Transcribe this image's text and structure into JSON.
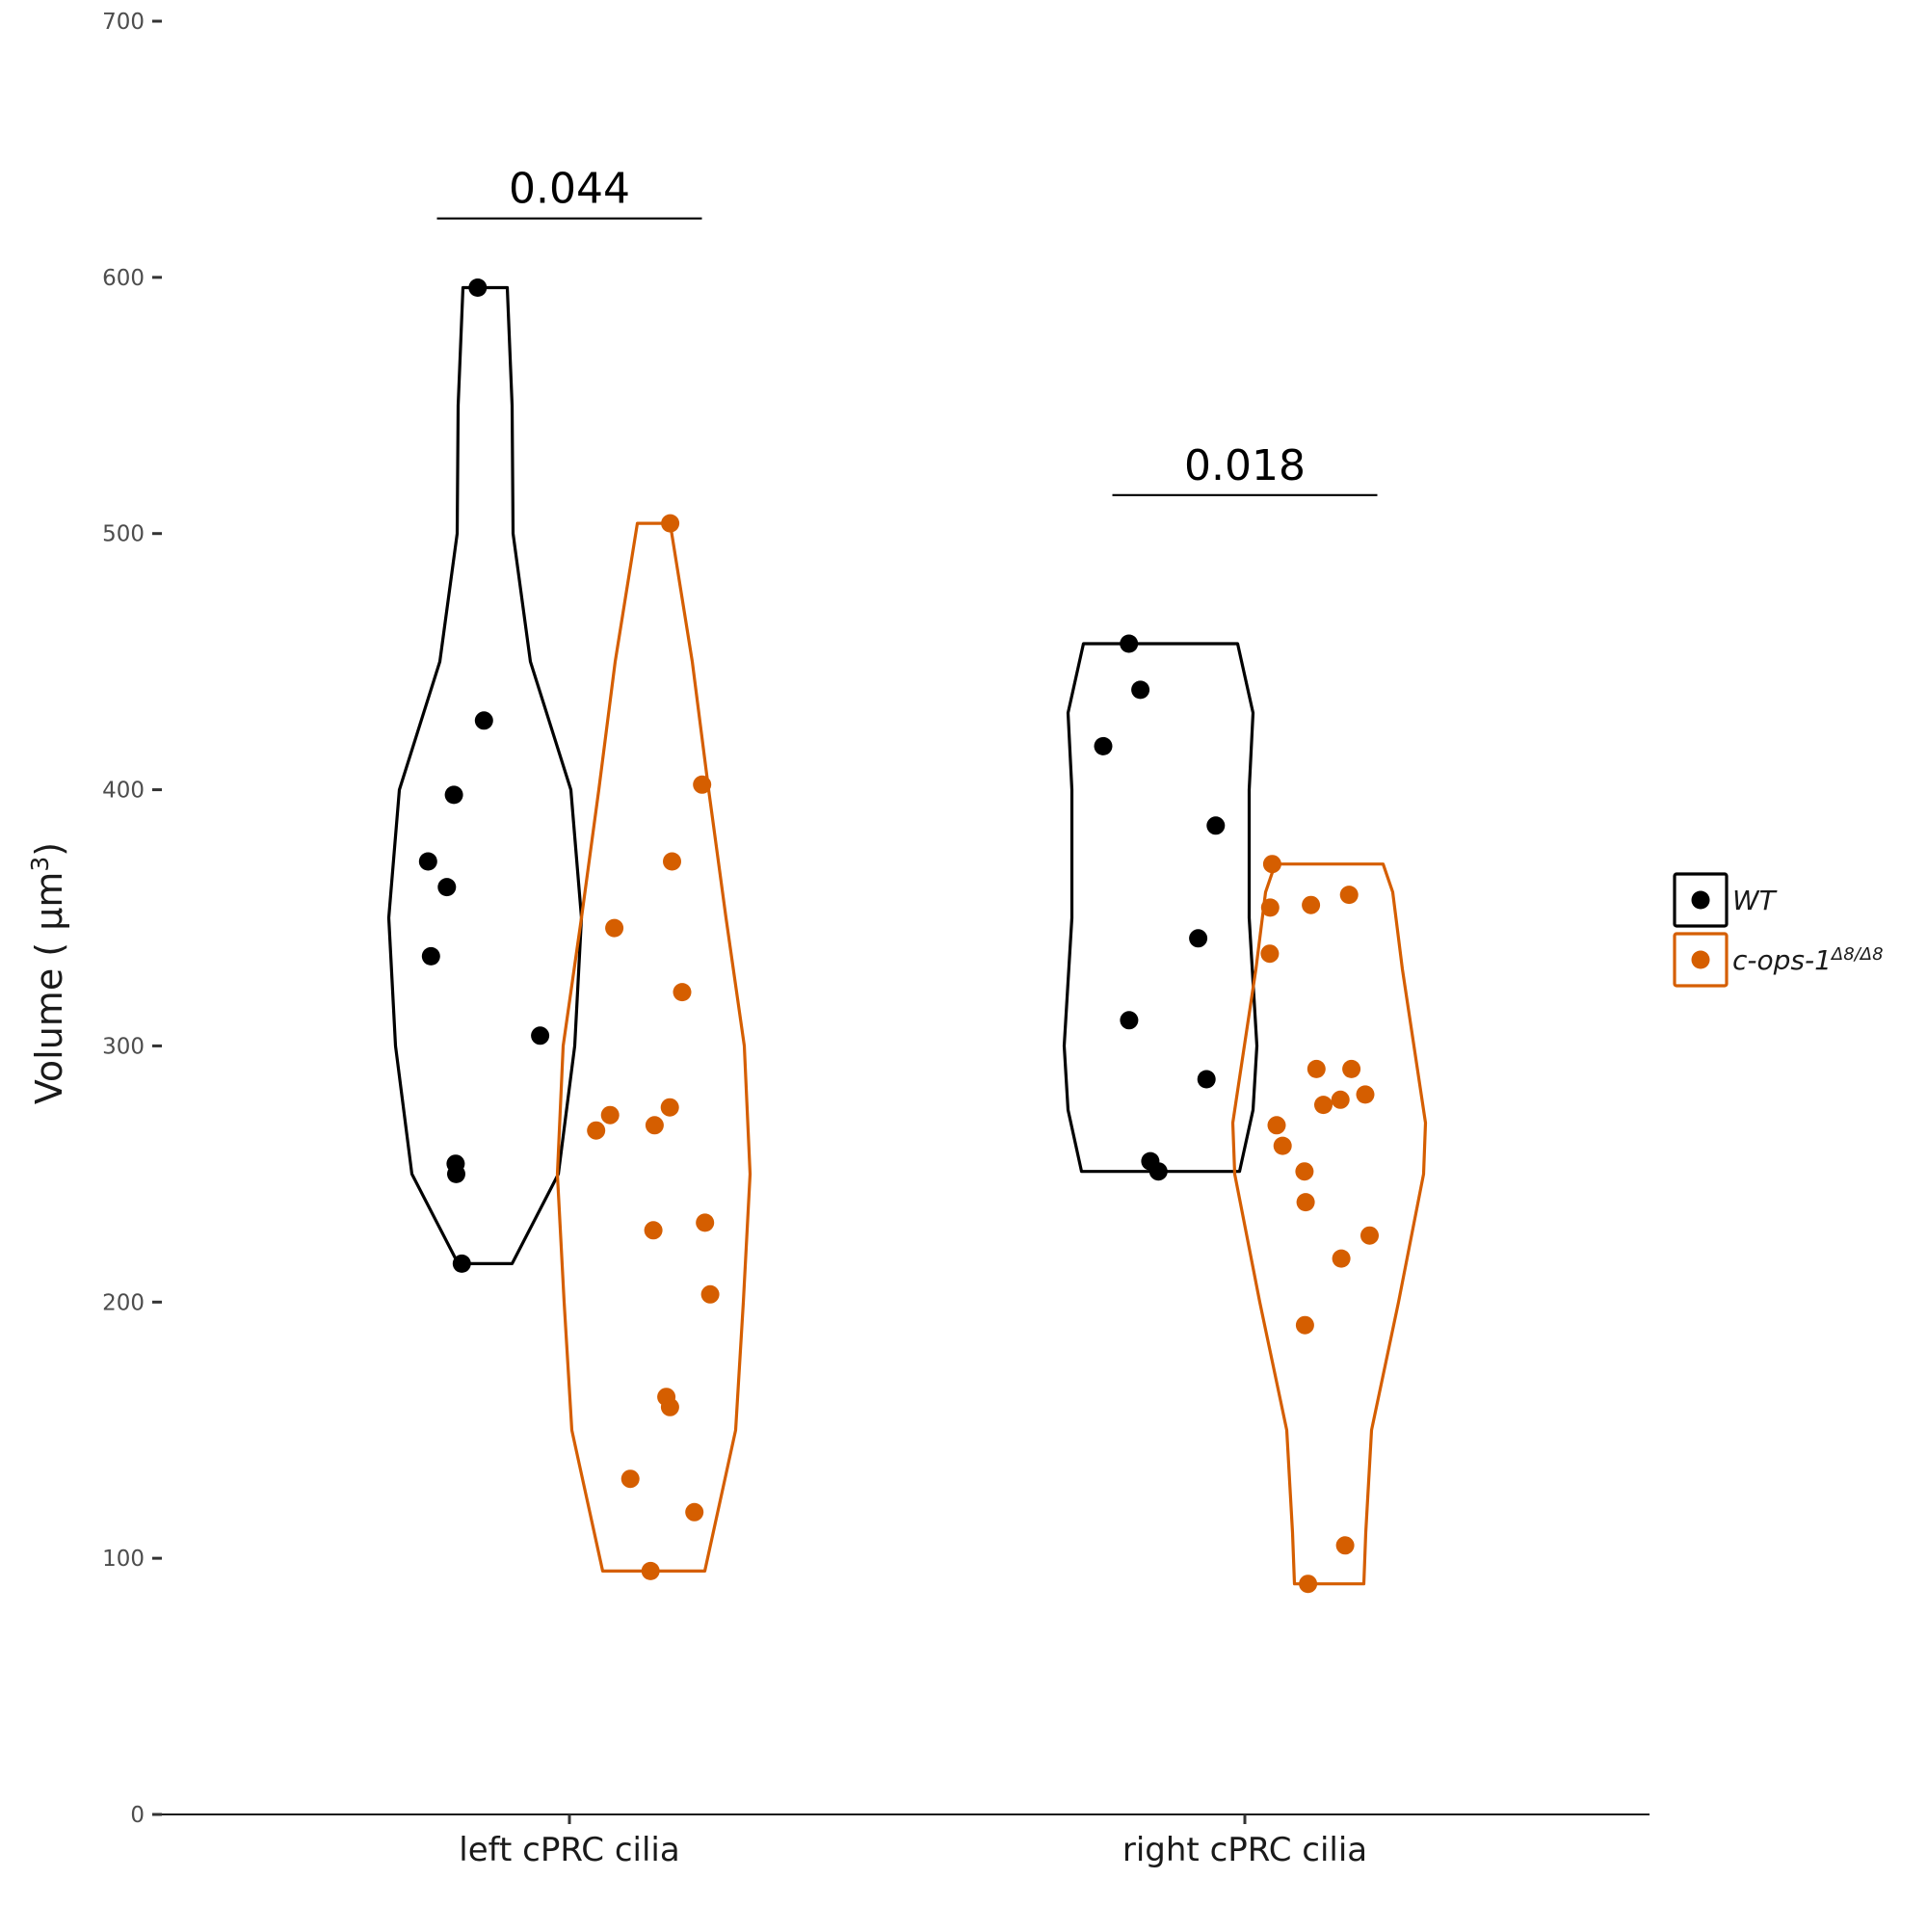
{
  "chart_data": {
    "type": "violin",
    "ylabel": "Volume ( µm³)",
    "ylabel_prefix": "Volume ( µm",
    "ylabel_sup": "3",
    "ylabel_suffix": ")",
    "xlabel": "",
    "ylim": [
      0,
      700
    ],
    "yticks": [
      0,
      100,
      200,
      300,
      400,
      500,
      600,
      700
    ],
    "ytick_labels": [
      "0",
      "100",
      "200",
      "300",
      "400",
      "500",
      "600",
      "700"
    ],
    "grid": false,
    "legend_position": "right",
    "categories": [
      "left cPRC cilia",
      "right cPRC cilia"
    ],
    "series": [
      {
        "name": "WT",
        "name_sup": "",
        "color": "#000000",
        "groups": [
          {
            "category": "left cPRC cilia",
            "points": [
              596,
              427,
              398,
              372,
              362,
              335,
              304,
              254,
              250,
              215
            ],
            "violin_profile": [
              [
                215,
                0.28
              ],
              [
                250,
                0.76
              ],
              [
                300,
                0.93
              ],
              [
                350,
                1.0
              ],
              [
                400,
                0.89
              ],
              [
                450,
                0.47
              ],
              [
                500,
                0.29
              ],
              [
                550,
                0.28
              ],
              [
                596,
                0.23
              ]
            ]
          },
          {
            "category": "right cPRC cilia",
            "points": [
              457,
              439,
              417,
              386,
              342,
              310,
              287,
              255,
              251
            ],
            "violin_profile": [
              [
                251,
                0.82
              ],
              [
                275,
                0.96
              ],
              [
                300,
                1.0
              ],
              [
                350,
                0.92
              ],
              [
                400,
                0.92
              ],
              [
                430,
                0.96
              ],
              [
                457,
                0.8
              ]
            ]
          }
        ]
      },
      {
        "name": "c-ops-1",
        "name_sup": "Δ8/Δ8",
        "color": "#d55e00",
        "groups": [
          {
            "category": "left cPRC cilia",
            "points": [
              504,
              402,
              372,
              346,
              321,
              276,
              273,
              269,
              267,
              231,
              228,
              203,
              163,
              159,
              131,
              118,
              95
            ],
            "violin_profile": [
              [
                95,
                0.53
              ],
              [
                150,
                0.85
              ],
              [
                200,
                0.93
              ],
              [
                250,
                1.0
              ],
              [
                300,
                0.94
              ],
              [
                350,
                0.75
              ],
              [
                400,
                0.57
              ],
              [
                450,
                0.4
              ],
              [
                504,
                0.17
              ]
            ]
          },
          {
            "category": "right cPRC cilia",
            "points": [
              371,
              355,
              354,
              359,
              336,
              291,
              291,
              281,
              279,
              277,
              269,
              261,
              251,
              239,
              226,
              217,
              191,
              105,
              90
            ],
            "violin_profile": [
              [
                90,
                0.36
              ],
              [
                110,
                0.38
              ],
              [
                150,
                0.44
              ],
              [
                200,
                0.72
              ],
              [
                250,
                0.98
              ],
              [
                270,
                1.0
              ],
              [
                300,
                0.88
              ],
              [
                330,
                0.76
              ],
              [
                360,
                0.66
              ],
              [
                371,
                0.56
              ]
            ]
          }
        ]
      }
    ],
    "annotations": [
      {
        "category": "left cPRC cilia",
        "text": "0.044",
        "y": 623
      },
      {
        "category": "right cPRC cilia",
        "text": "0.018",
        "y": 515
      }
    ]
  }
}
